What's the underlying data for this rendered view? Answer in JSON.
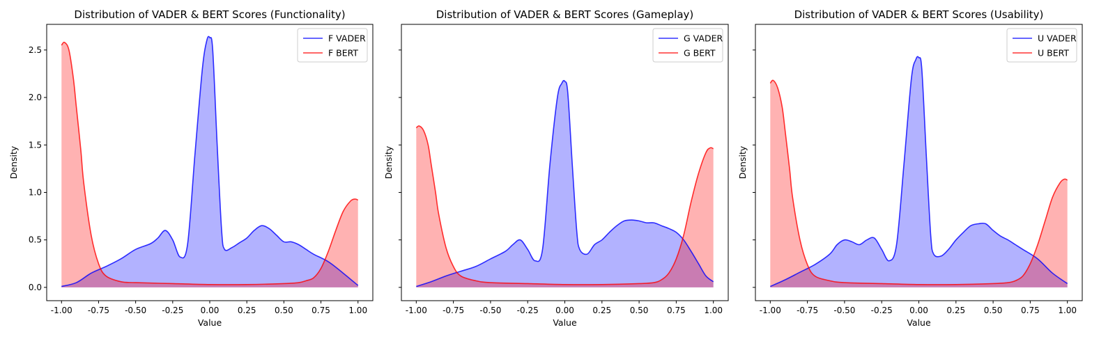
{
  "chart_data": [
    {
      "type": "area",
      "title": "Distribution of VADER & BERT Scores (Functionality)",
      "xlabel": "Value",
      "ylabel": "Density",
      "xlim": [
        -1.1,
        1.1
      ],
      "ylim": [
        -0.14,
        2.77
      ],
      "xticks": [
        "-1.00",
        "-0.75",
        "-0.50",
        "-0.25",
        "0.00",
        "0.25",
        "0.50",
        "0.75",
        "1.00"
      ],
      "yticks": [
        "0.0",
        "0.5",
        "1.0",
        "1.5",
        "2.0",
        "2.5"
      ],
      "show_ytick_labels": true,
      "show_ylabel": true,
      "legend_position": "top-right",
      "series": [
        {
          "name": "F VADER",
          "color": "#0000ff",
          "x": [
            -1.0,
            -0.9,
            -0.8,
            -0.7,
            -0.6,
            -0.5,
            -0.4,
            -0.35,
            -0.3,
            -0.25,
            -0.2,
            -0.15,
            -0.1,
            -0.05,
            -0.02,
            0.0,
            0.02,
            0.05,
            0.08,
            0.1,
            0.15,
            0.2,
            0.25,
            0.3,
            0.35,
            0.4,
            0.45,
            0.5,
            0.55,
            0.6,
            0.65,
            0.7,
            0.8,
            0.9,
            1.0
          ],
          "y": [
            0.01,
            0.05,
            0.15,
            0.22,
            0.3,
            0.4,
            0.46,
            0.52,
            0.6,
            0.5,
            0.32,
            0.45,
            1.4,
            2.3,
            2.6,
            2.63,
            2.5,
            1.5,
            0.6,
            0.4,
            0.42,
            0.47,
            0.52,
            0.6,
            0.65,
            0.62,
            0.55,
            0.48,
            0.48,
            0.45,
            0.4,
            0.35,
            0.27,
            0.15,
            0.02
          ]
        },
        {
          "name": "F BERT",
          "color": "#ff0000",
          "x": [
            -1.0,
            -0.98,
            -0.95,
            -0.92,
            -0.9,
            -0.87,
            -0.85,
            -0.8,
            -0.75,
            -0.7,
            -0.6,
            -0.5,
            -0.25,
            0.0,
            0.25,
            0.5,
            0.6,
            0.65,
            0.7,
            0.75,
            0.8,
            0.85,
            0.9,
            0.95,
            0.98,
            1.0
          ],
          "y": [
            2.55,
            2.58,
            2.5,
            2.2,
            1.9,
            1.45,
            1.1,
            0.55,
            0.25,
            0.12,
            0.06,
            0.05,
            0.04,
            0.03,
            0.03,
            0.04,
            0.05,
            0.07,
            0.1,
            0.2,
            0.38,
            0.6,
            0.8,
            0.91,
            0.93,
            0.92
          ]
        }
      ]
    },
    {
      "type": "area",
      "title": "Distribution of VADER & BERT Scores (Gameplay)",
      "xlabel": "Value",
      "ylabel": "Density",
      "xlim": [
        -1.1,
        1.1
      ],
      "ylim": [
        -0.14,
        2.77
      ],
      "xticks": [
        "-1.00",
        "-0.75",
        "-0.50",
        "-0.25",
        "0.00",
        "0.25",
        "0.50",
        "0.75",
        "1.00"
      ],
      "yticks": [
        "0.0",
        "0.5",
        "1.0",
        "1.5",
        "2.0",
        "2.5"
      ],
      "show_ytick_labels": false,
      "show_ylabel": true,
      "legend_position": "top-right",
      "series": [
        {
          "name": "G VADER",
          "color": "#0000ff",
          "x": [
            -1.0,
            -0.9,
            -0.8,
            -0.7,
            -0.6,
            -0.5,
            -0.4,
            -0.35,
            -0.3,
            -0.25,
            -0.2,
            -0.15,
            -0.1,
            -0.05,
            -0.02,
            0.0,
            0.02,
            0.05,
            0.08,
            0.1,
            0.15,
            0.2,
            0.25,
            0.3,
            0.35,
            0.4,
            0.45,
            0.5,
            0.55,
            0.6,
            0.65,
            0.7,
            0.75,
            0.8,
            0.85,
            0.9,
            0.95,
            1.0
          ],
          "y": [
            0.01,
            0.06,
            0.12,
            0.17,
            0.22,
            0.3,
            0.38,
            0.45,
            0.5,
            0.4,
            0.28,
            0.4,
            1.3,
            2.0,
            2.15,
            2.17,
            2.05,
            1.3,
            0.6,
            0.4,
            0.35,
            0.45,
            0.5,
            0.58,
            0.65,
            0.7,
            0.71,
            0.7,
            0.68,
            0.68,
            0.65,
            0.62,
            0.58,
            0.5,
            0.38,
            0.25,
            0.12,
            0.06
          ]
        },
        {
          "name": "G BERT",
          "color": "#ff0000",
          "x": [
            -1.0,
            -0.98,
            -0.95,
            -0.92,
            -0.9,
            -0.87,
            -0.85,
            -0.8,
            -0.75,
            -0.7,
            -0.6,
            -0.5,
            -0.25,
            0.0,
            0.25,
            0.5,
            0.6,
            0.65,
            0.7,
            0.75,
            0.8,
            0.85,
            0.9,
            0.95,
            0.98,
            1.0
          ],
          "y": [
            1.68,
            1.7,
            1.65,
            1.5,
            1.3,
            1.0,
            0.78,
            0.42,
            0.22,
            0.12,
            0.07,
            0.05,
            0.04,
            0.03,
            0.03,
            0.04,
            0.05,
            0.08,
            0.15,
            0.3,
            0.55,
            0.9,
            1.2,
            1.42,
            1.47,
            1.46
          ]
        }
      ]
    },
    {
      "type": "area",
      "title": "Distribution of VADER & BERT Scores (Usability)",
      "xlabel": "Value",
      "ylabel": "Density",
      "xlim": [
        -1.1,
        1.1
      ],
      "ylim": [
        -0.14,
        2.77
      ],
      "xticks": [
        "-1.00",
        "-0.75",
        "-0.50",
        "-0.25",
        "0.00",
        "0.25",
        "0.50",
        "0.75",
        "1.00"
      ],
      "yticks": [
        "0.0",
        "0.5",
        "1.0",
        "1.5",
        "2.0",
        "2.5"
      ],
      "show_ytick_labels": false,
      "show_ylabel": true,
      "legend_position": "top-right",
      "series": [
        {
          "name": "U VADER",
          "color": "#0000ff",
          "x": [
            -1.0,
            -0.9,
            -0.8,
            -0.7,
            -0.6,
            -0.55,
            -0.5,
            -0.45,
            -0.4,
            -0.35,
            -0.3,
            -0.25,
            -0.2,
            -0.15,
            -0.1,
            -0.05,
            -0.02,
            0.0,
            0.02,
            0.05,
            0.08,
            0.1,
            0.15,
            0.2,
            0.25,
            0.3,
            0.35,
            0.4,
            0.45,
            0.5,
            0.55,
            0.6,
            0.65,
            0.7,
            0.8,
            0.9,
            1.0
          ],
          "y": [
            0.01,
            0.08,
            0.16,
            0.24,
            0.35,
            0.45,
            0.5,
            0.48,
            0.45,
            0.5,
            0.52,
            0.4,
            0.28,
            0.45,
            1.3,
            2.2,
            2.4,
            2.42,
            2.3,
            1.4,
            0.55,
            0.35,
            0.33,
            0.4,
            0.5,
            0.58,
            0.65,
            0.67,
            0.67,
            0.6,
            0.54,
            0.5,
            0.45,
            0.4,
            0.3,
            0.15,
            0.04
          ]
        },
        {
          "name": "U BERT",
          "color": "#ff0000",
          "x": [
            -1.0,
            -0.98,
            -0.95,
            -0.92,
            -0.9,
            -0.87,
            -0.85,
            -0.8,
            -0.75,
            -0.7,
            -0.6,
            -0.5,
            -0.25,
            0.0,
            0.25,
            0.5,
            0.6,
            0.65,
            0.7,
            0.75,
            0.8,
            0.85,
            0.9,
            0.95,
            0.98,
            1.0
          ],
          "y": [
            2.15,
            2.18,
            2.1,
            1.9,
            1.65,
            1.25,
            0.95,
            0.5,
            0.24,
            0.12,
            0.07,
            0.05,
            0.04,
            0.03,
            0.03,
            0.04,
            0.05,
            0.07,
            0.12,
            0.25,
            0.45,
            0.7,
            0.95,
            1.1,
            1.14,
            1.13
          ]
        }
      ]
    }
  ]
}
